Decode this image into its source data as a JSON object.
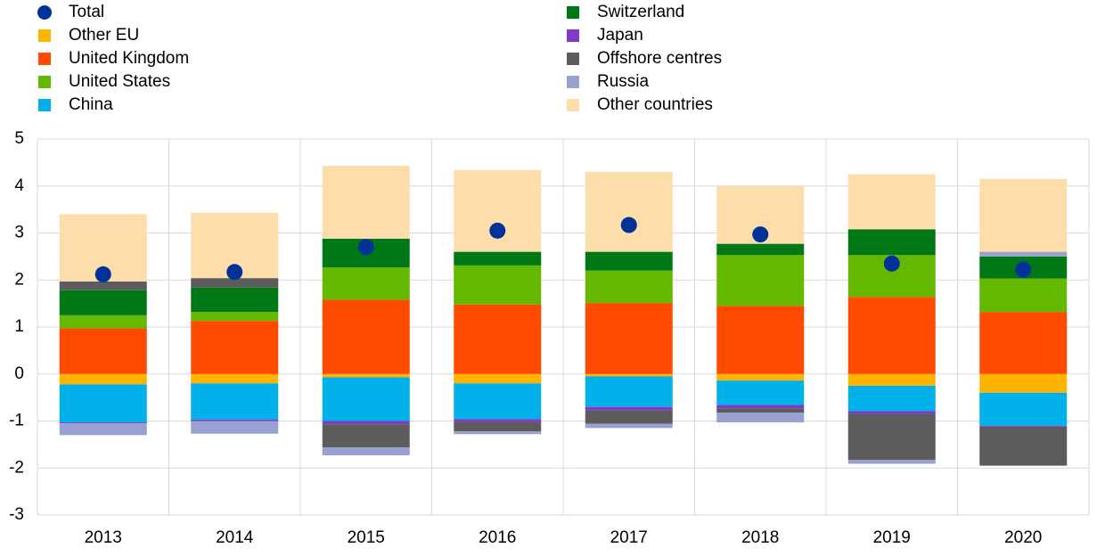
{
  "chart_data": {
    "type": "bar",
    "stacked": true,
    "categories": [
      "2013",
      "2014",
      "2015",
      "2016",
      "2017",
      "2018",
      "2019",
      "2020"
    ],
    "total": {
      "name": "Total",
      "color": "#003299",
      "values": [
        2.12,
        2.17,
        2.7,
        3.05,
        3.17,
        2.97,
        2.35,
        2.22
      ]
    },
    "series": [
      {
        "name": "Other EU",
        "color": "#ffb400",
        "values": [
          -0.22,
          -0.2,
          -0.07,
          -0.2,
          -0.05,
          -0.14,
          -0.25,
          -0.4
        ]
      },
      {
        "name": "United Kingdom",
        "color": "#ff4b00",
        "values": [
          0.97,
          1.13,
          1.58,
          1.48,
          1.51,
          1.45,
          1.64,
          1.32
        ]
      },
      {
        "name": "United States",
        "color": "#65b800",
        "values": [
          0.28,
          0.19,
          0.69,
          0.83,
          0.69,
          1.08,
          0.89,
          0.71
        ]
      },
      {
        "name": "China",
        "color": "#00b1ea",
        "values": [
          -0.81,
          -0.77,
          -0.93,
          -0.76,
          -0.65,
          -0.52,
          -0.54,
          -0.7
        ]
      },
      {
        "name": "Switzerland",
        "color": "#007816",
        "values": [
          0.53,
          0.52,
          0.61,
          0.29,
          0.4,
          0.24,
          0.55,
          0.47
        ]
      },
      {
        "name": "Japan",
        "color": "#8139c6",
        "values": [
          -0.02,
          -0.03,
          -0.07,
          -0.06,
          -0.07,
          -0.07,
          -0.06,
          -0.02
        ]
      },
      {
        "name": "Offshore centres",
        "color": "#5c5c5c",
        "values": [
          0.19,
          0.2,
          -0.49,
          -0.2,
          -0.29,
          -0.09,
          -0.98,
          -0.83
        ]
      },
      {
        "name": "Russia",
        "color": "#98a1d0",
        "values": [
          -0.25,
          -0.27,
          -0.17,
          -0.06,
          -0.09,
          -0.21,
          -0.08,
          0.1
        ]
      },
      {
        "name": "Other countries",
        "color": "#fdddaa",
        "values": [
          1.43,
          1.39,
          1.55,
          1.74,
          1.7,
          1.23,
          1.17,
          1.55
        ]
      }
    ],
    "ylim": [
      -3,
      5
    ],
    "yticks": [
      -3,
      -2,
      -1,
      0,
      1,
      2,
      3,
      4,
      5
    ],
    "grid": true
  }
}
